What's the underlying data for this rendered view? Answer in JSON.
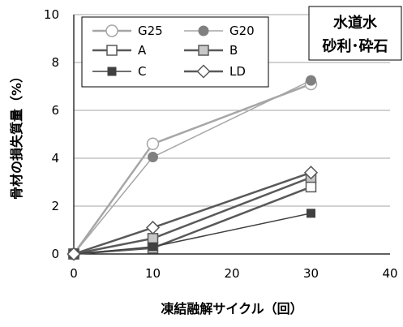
{
  "chart_data": {
    "type": "line",
    "xlabel": "凍結融解サイクル（回）",
    "ylabel": "骨材の損失質量（%）",
    "xlim": [
      0,
      40
    ],
    "ylim": [
      0,
      10
    ],
    "x_ticks": [
      0,
      10,
      20,
      30,
      40
    ],
    "y_ticks": [
      0,
      2,
      4,
      6,
      8,
      10
    ],
    "grid": "horizontal",
    "legend_position": "top-left",
    "annotation": [
      "水道水",
      "砂利･砕石"
    ],
    "series": [
      {
        "name": "G25",
        "x": [
          0,
          10,
          30
        ],
        "y": [
          0,
          4.6,
          7.1
        ],
        "color": "#a6a6a6",
        "marker": "circle-open",
        "stroke_width": 2.5
      },
      {
        "name": "G20",
        "x": [
          0,
          10,
          30
        ],
        "y": [
          0,
          4.05,
          7.25
        ],
        "color": "#a6a6a6",
        "marker": "circle-filled",
        "stroke_width": 1.5
      },
      {
        "name": "A",
        "x": [
          0,
          10,
          30
        ],
        "y": [
          0,
          0.25,
          2.8
        ],
        "color": "#595959",
        "marker": "square-open",
        "stroke_width": 2.5
      },
      {
        "name": "B",
        "x": [
          0,
          10,
          30
        ],
        "y": [
          0,
          0.65,
          3.2
        ],
        "color": "#595959",
        "marker": "square-gray",
        "stroke_width": 2.5
      },
      {
        "name": "C",
        "x": [
          0,
          10,
          30
        ],
        "y": [
          0,
          0.3,
          1.7
        ],
        "color": "#404040",
        "marker": "square-filled",
        "stroke_width": 1.5
      },
      {
        "name": "LD",
        "x": [
          0,
          10,
          30
        ],
        "y": [
          0,
          1.1,
          3.4
        ],
        "color": "#595959",
        "marker": "diamond-open",
        "stroke_width": 2.5
      }
    ]
  }
}
